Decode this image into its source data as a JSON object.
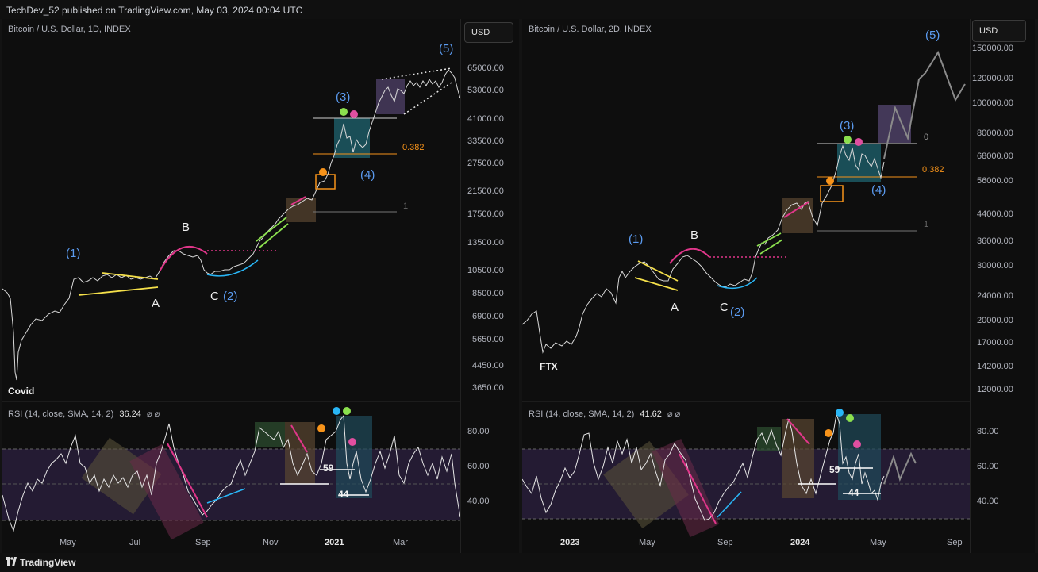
{
  "header": {
    "published": "TechDev_52 published on TradingView.com, May 03, 2024 00:04 UTC"
  },
  "footer": {
    "brand": "TradingView"
  },
  "left": {
    "title": "Bitcoin / U.S. Dollar, 1D, INDEX",
    "currency": "USD",
    "price_ticks": [
      "65000.00",
      "53000.00",
      "41000.00",
      "33500.00",
      "27500.00",
      "21500.00",
      "17500.00",
      "13500.00",
      "10500.00",
      "8500.00",
      "6900.00",
      "5650.00",
      "4450.00",
      "3650.00"
    ],
    "rsi_label": "RSI (14, close, SMA, 14, 2)",
    "rsi_value": "36.24",
    "rsi_ticks": [
      "80.00",
      "60.00",
      "40.00"
    ],
    "x_ticks": [
      "May",
      "Jul",
      "Sep",
      "Nov",
      "2021",
      "Mar"
    ],
    "waves": {
      "w1": "(1)",
      "w2": "(2)",
      "w3": "(3)",
      "w4": "(4)",
      "w5": "(5)"
    },
    "abc": {
      "a": "A",
      "b": "B",
      "c": "C"
    },
    "event": "Covid",
    "fib_382": "0.382",
    "fib_1": "1",
    "rsi_levels": {
      "high": "59",
      "low": "44"
    }
  },
  "right": {
    "title": "Bitcoin / U.S. Dollar, 2D, INDEX",
    "currency": "USD",
    "price_ticks": [
      "150000.00",
      "120000.00",
      "100000.00",
      "80000.00",
      "68000.00",
      "56000.00",
      "44000.00",
      "36000.00",
      "30000.00",
      "24000.00",
      "20000.00",
      "17000.00",
      "14200.00",
      "12000.00"
    ],
    "rsi_label": "RSI (14, close, SMA, 14, 2)",
    "rsi_value": "41.62",
    "rsi_ticks": [
      "80.00",
      "60.00",
      "40.00"
    ],
    "x_ticks": [
      "2023",
      "May",
      "Sep",
      "2024",
      "May",
      "Sep"
    ],
    "waves": {
      "w1": "(1)",
      "w2": "(2)",
      "w3": "(3)",
      "w4": "(4)",
      "w5": "(5)"
    },
    "abc": {
      "a": "A",
      "b": "B",
      "c": "C"
    },
    "event": "FTX",
    "fib_0": "0",
    "fib_382": "0.382",
    "fib_1": "1",
    "rsi_levels": {
      "high": "59",
      "low": "44"
    }
  },
  "colors": {
    "wave_label": "#5b9bf0",
    "fib": "#f7931a",
    "arc": "#e0368a",
    "rsi_band": "#7e57c2",
    "green_dot": "#8be04e",
    "pink_dot": "#e04fa0",
    "orange_dot": "#f7931a",
    "cyan_dot": "#29b6f6"
  },
  "icons": {
    "brand_logo": "tradingview-logo-icon"
  }
}
